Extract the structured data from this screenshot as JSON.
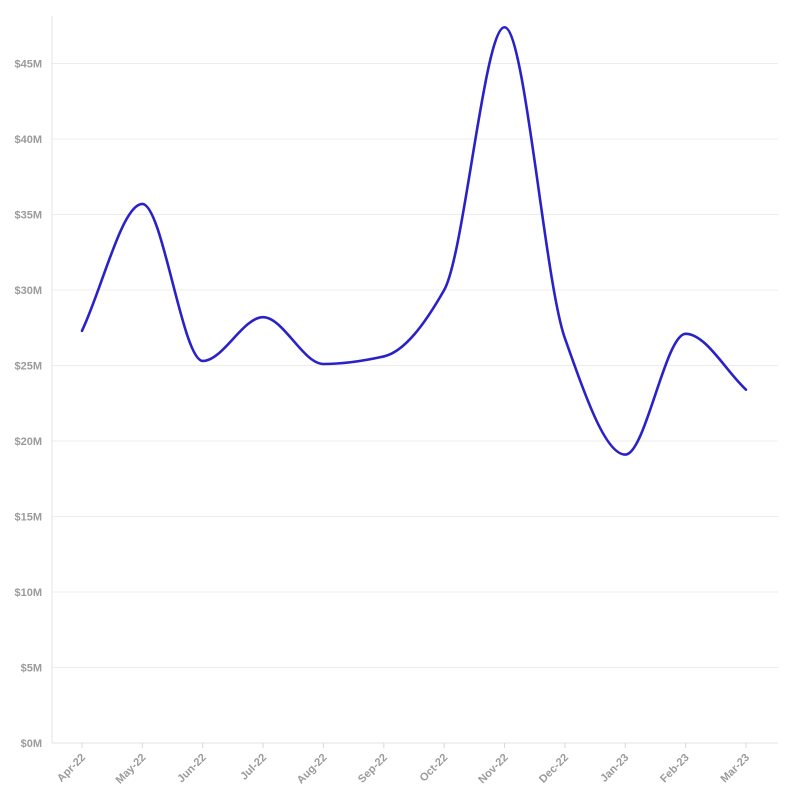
{
  "chart_data": {
    "type": "line",
    "title": "",
    "xlabel": "",
    "ylabel": "",
    "categories": [
      "Apr-22",
      "May-22",
      "Jun-22",
      "Jul-22",
      "Aug-22",
      "Sep-22",
      "Oct-22",
      "Nov-22",
      "Dec-22",
      "Jan-23",
      "Feb-23",
      "Mar-23"
    ],
    "series": [
      {
        "values": [
          27.3,
          35.7,
          25.3,
          28.2,
          25.1,
          25.6,
          30.0,
          47.4,
          26.8,
          19.1,
          27.1,
          23.4
        ],
        "color": "#2a22c8"
      }
    ],
    "ylim": [
      0,
      47.5
    ],
    "yticks": [
      0,
      5,
      10,
      15,
      20,
      25,
      30,
      35,
      40,
      45
    ],
    "ytick_labels": [
      "$0M",
      "$5M",
      "$10M",
      "$15M",
      "$20M",
      "$25M",
      "$30M",
      "$35M",
      "$40M",
      "$45M"
    ],
    "grid": true,
    "smooth": true
  }
}
